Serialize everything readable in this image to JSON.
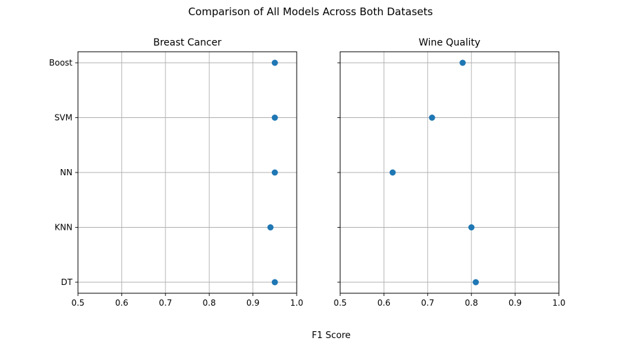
{
  "figure": {
    "suptitle": "Comparison of All Models Across Both Datasets",
    "supxlabel": "F1 Score"
  },
  "colors": {
    "marker": "#1f77b4",
    "grid": "#b0b0b0",
    "axes": "#000000",
    "background": "#ffffff"
  },
  "chart_data": [
    {
      "type": "scatter",
      "title": "Breast Cancer",
      "xlabel": "",
      "ylabel": "",
      "xlim": [
        0.5,
        1.0
      ],
      "xticks": [
        0.5,
        0.6,
        0.7,
        0.8,
        0.9,
        1.0
      ],
      "xtick_labels": [
        "0.5",
        "0.6",
        "0.7",
        "0.8",
        "0.9",
        "1.0"
      ],
      "categories": [
        "Boost",
        "SVM",
        "NN",
        "KNN",
        "DT"
      ],
      "values": [
        0.95,
        0.95,
        0.95,
        0.94,
        0.95
      ],
      "grid": true,
      "show_ytick_labels": true
    },
    {
      "type": "scatter",
      "title": "Wine Quality",
      "xlabel": "",
      "ylabel": "",
      "xlim": [
        0.5,
        1.0
      ],
      "xticks": [
        0.5,
        0.6,
        0.7,
        0.8,
        0.9,
        1.0
      ],
      "xtick_labels": [
        "0.5",
        "0.6",
        "0.7",
        "0.8",
        "0.9",
        "1.0"
      ],
      "categories": [
        "Boost",
        "SVM",
        "NN",
        "KNN",
        "DT"
      ],
      "values": [
        0.78,
        0.71,
        0.62,
        0.8,
        0.81
      ],
      "grid": true,
      "show_ytick_labels": false
    }
  ]
}
